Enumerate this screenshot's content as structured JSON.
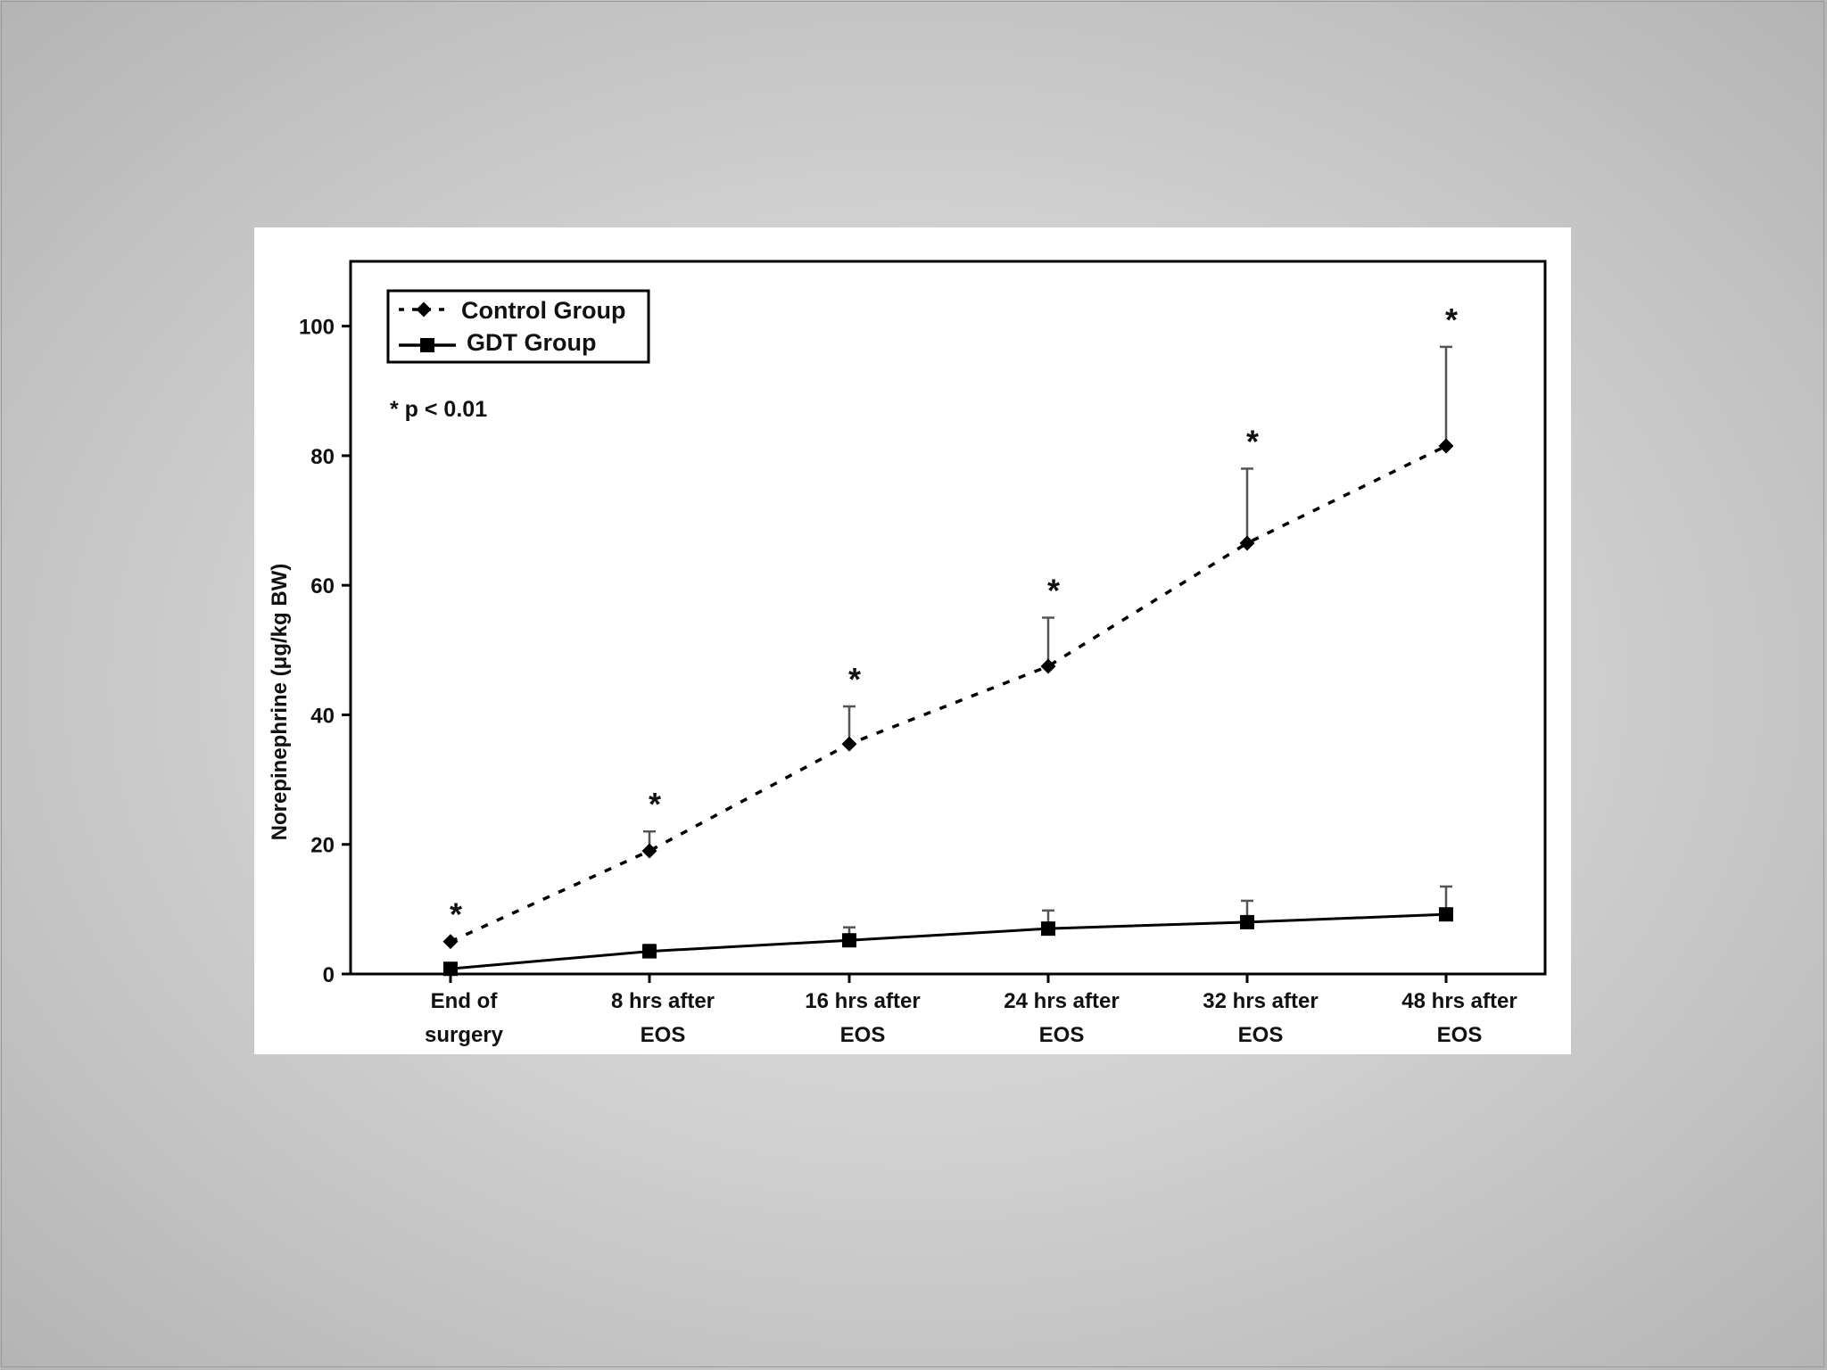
{
  "chart_data": {
    "type": "line",
    "title": "",
    "xlabel": "",
    "ylabel": "Norepinephrine (μg/kg BW)",
    "ylim": [
      0,
      110
    ],
    "yticks": [
      0,
      20,
      40,
      60,
      80,
      100
    ],
    "grid": false,
    "legend_position": "top-left",
    "categories": [
      [
        "End of",
        "surgery"
      ],
      [
        "8 hrs after",
        "EOS"
      ],
      [
        "16 hrs after",
        "EOS"
      ],
      [
        "24 hrs after",
        "EOS"
      ],
      [
        "32 hrs after",
        "EOS"
      ],
      [
        "48 hrs after",
        "EOS"
      ]
    ],
    "series": [
      {
        "name": "Control Group",
        "style": "dashed",
        "marker": "diamond",
        "color": "#000000",
        "values": [
          5,
          19,
          35.5,
          47.5,
          66.5,
          81.5
        ],
        "error_upper": [
          null,
          22,
          41.3,
          55,
          78,
          96.8
        ]
      },
      {
        "name": "GDT Group",
        "style": "solid",
        "marker": "square",
        "color": "#000000",
        "values": [
          0.8,
          3.5,
          5.2,
          7,
          8,
          9.2
        ],
        "error_upper": [
          null,
          4.5,
          7.2,
          9.8,
          11.3,
          13.5
        ]
      }
    ],
    "significance_marker": "*",
    "significant_points": [
      0,
      1,
      2,
      3,
      4,
      5
    ],
    "annotation": "* p < 0.01"
  }
}
